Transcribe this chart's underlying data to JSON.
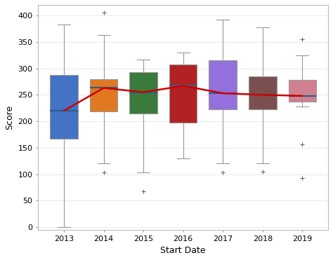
{
  "xlabel": "Start Date",
  "ylabel": "Score",
  "xlabels": [
    "2013",
    "2014",
    "2015",
    "2016",
    "2017",
    "2018",
    "2019"
  ],
  "box_colors": [
    "#4472C4",
    "#E07820",
    "#3A7A3A",
    "#B22222",
    "#9370DB",
    "#7B4F4F",
    "#D08090"
  ],
  "boxes": [
    {
      "year": "2013",
      "whisker_low": 0,
      "q1": 167,
      "median": 220,
      "q3": 287,
      "whisker_high": 383,
      "fliers": []
    },
    {
      "year": "2014",
      "whisker_low": 120,
      "q1": 218,
      "median": 263,
      "q3": 280,
      "whisker_high": 363,
      "fliers": [
        405,
        103
      ]
    },
    {
      "year": "2015",
      "whisker_low": 103,
      "q1": 215,
      "median": 255,
      "q3": 293,
      "whisker_high": 316,
      "fliers": [
        68
      ]
    },
    {
      "year": "2016",
      "whisker_low": 130,
      "q1": 197,
      "median": 267,
      "q3": 307,
      "whisker_high": 330,
      "fliers": []
    },
    {
      "year": "2017",
      "whisker_low": 120,
      "q1": 222,
      "median": 253,
      "q3": 315,
      "whisker_high": 392,
      "fliers": [
        103
      ]
    },
    {
      "year": "2018",
      "whisker_low": 120,
      "q1": 222,
      "median": 250,
      "q3": 285,
      "whisker_high": 378,
      "fliers": [
        105
      ]
    },
    {
      "year": "2019",
      "whisker_low": 228,
      "q1": 237,
      "median": 248,
      "q3": 278,
      "whisker_high": 325,
      "fliers": [
        355,
        157,
        93
      ]
    }
  ],
  "mean_line": [
    220,
    263,
    255,
    267,
    253,
    250,
    248
  ],
  "mean_line_color": "#CC0000",
  "ylim": [
    -5,
    420
  ],
  "yticks": [
    0,
    50,
    100,
    150,
    200,
    250,
    300,
    350,
    400
  ],
  "figsize": [
    4.74,
    3.71
  ],
  "dpi": 100,
  "box_width": 0.7,
  "whisker_color": "#999999",
  "median_line_color": "#2c5f8a",
  "flier_marker": "+",
  "flier_color": "#666666"
}
